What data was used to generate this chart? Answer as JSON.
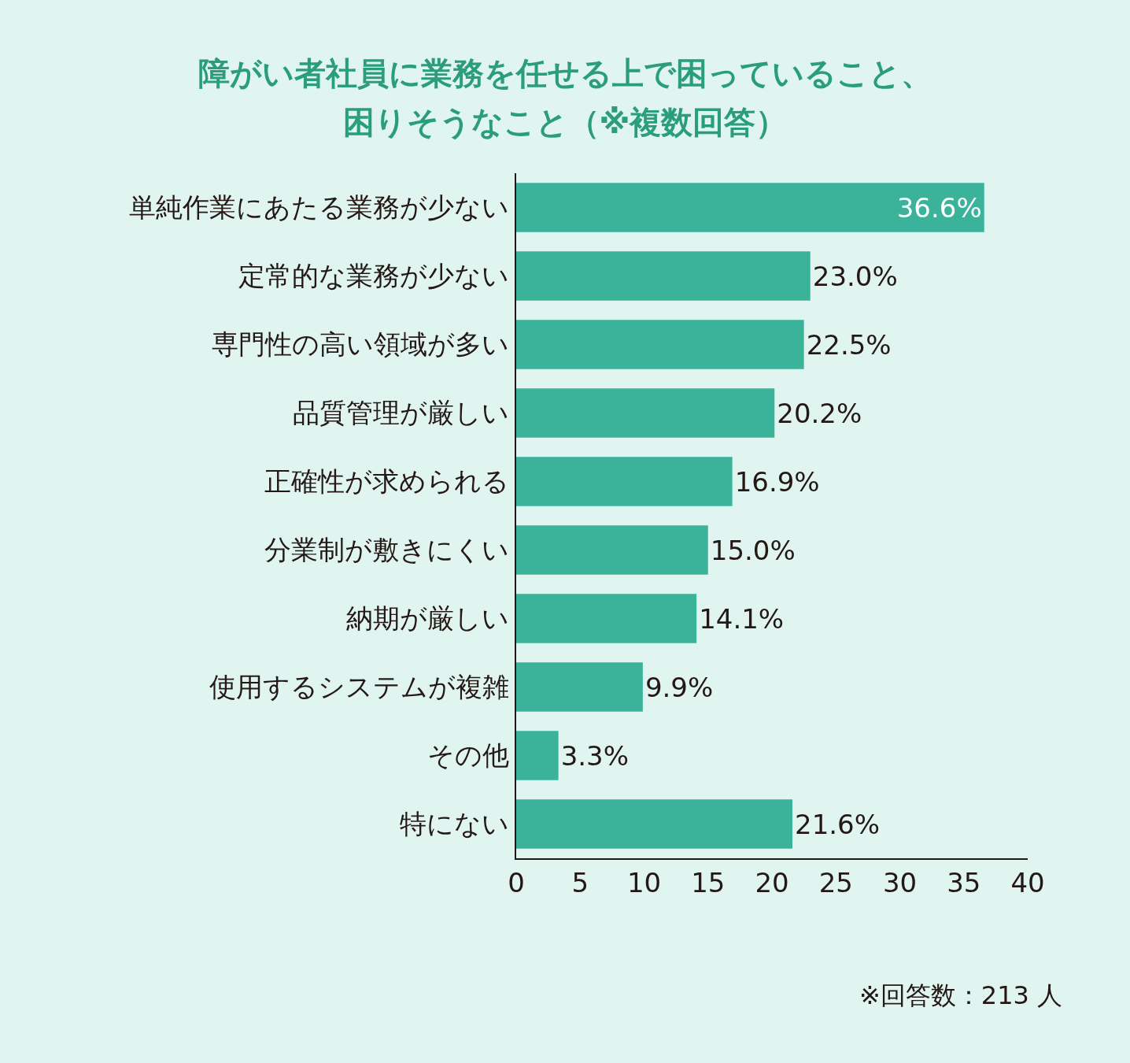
{
  "chart_data": {
    "type": "bar",
    "orientation": "horizontal",
    "title": "障がい者社員に業務を任せる上で困っていること、困りそうなこと（※複数回答）",
    "categories": [
      "単純作業にあたる業務が少ない",
      "定常的な業務が少ない",
      "専門性の高い領域が多い",
      "品質管理が厳しい",
      "正確性が求められる",
      "分業制が敷きにくい",
      "納期が厳しい",
      "使用するシステムが複雑",
      "その他",
      "特にない"
    ],
    "values": [
      36.6,
      23.0,
      22.5,
      20.2,
      16.9,
      15.0,
      14.1,
      9.9,
      3.3,
      21.6
    ],
    "value_labels": [
      "36.6%",
      "23.0%",
      "22.5%",
      "20.2%",
      "16.9%",
      "15.0%",
      "14.1%",
      "9.9%",
      "3.3%",
      "21.6%"
    ],
    "color": "#3ab39a",
    "xlim": [
      0,
      40
    ],
    "xticks": [
      0,
      5,
      10,
      15,
      20,
      25,
      30,
      35,
      40
    ],
    "grid": false,
    "annotations": [
      "※回答数：213 人"
    ]
  }
}
